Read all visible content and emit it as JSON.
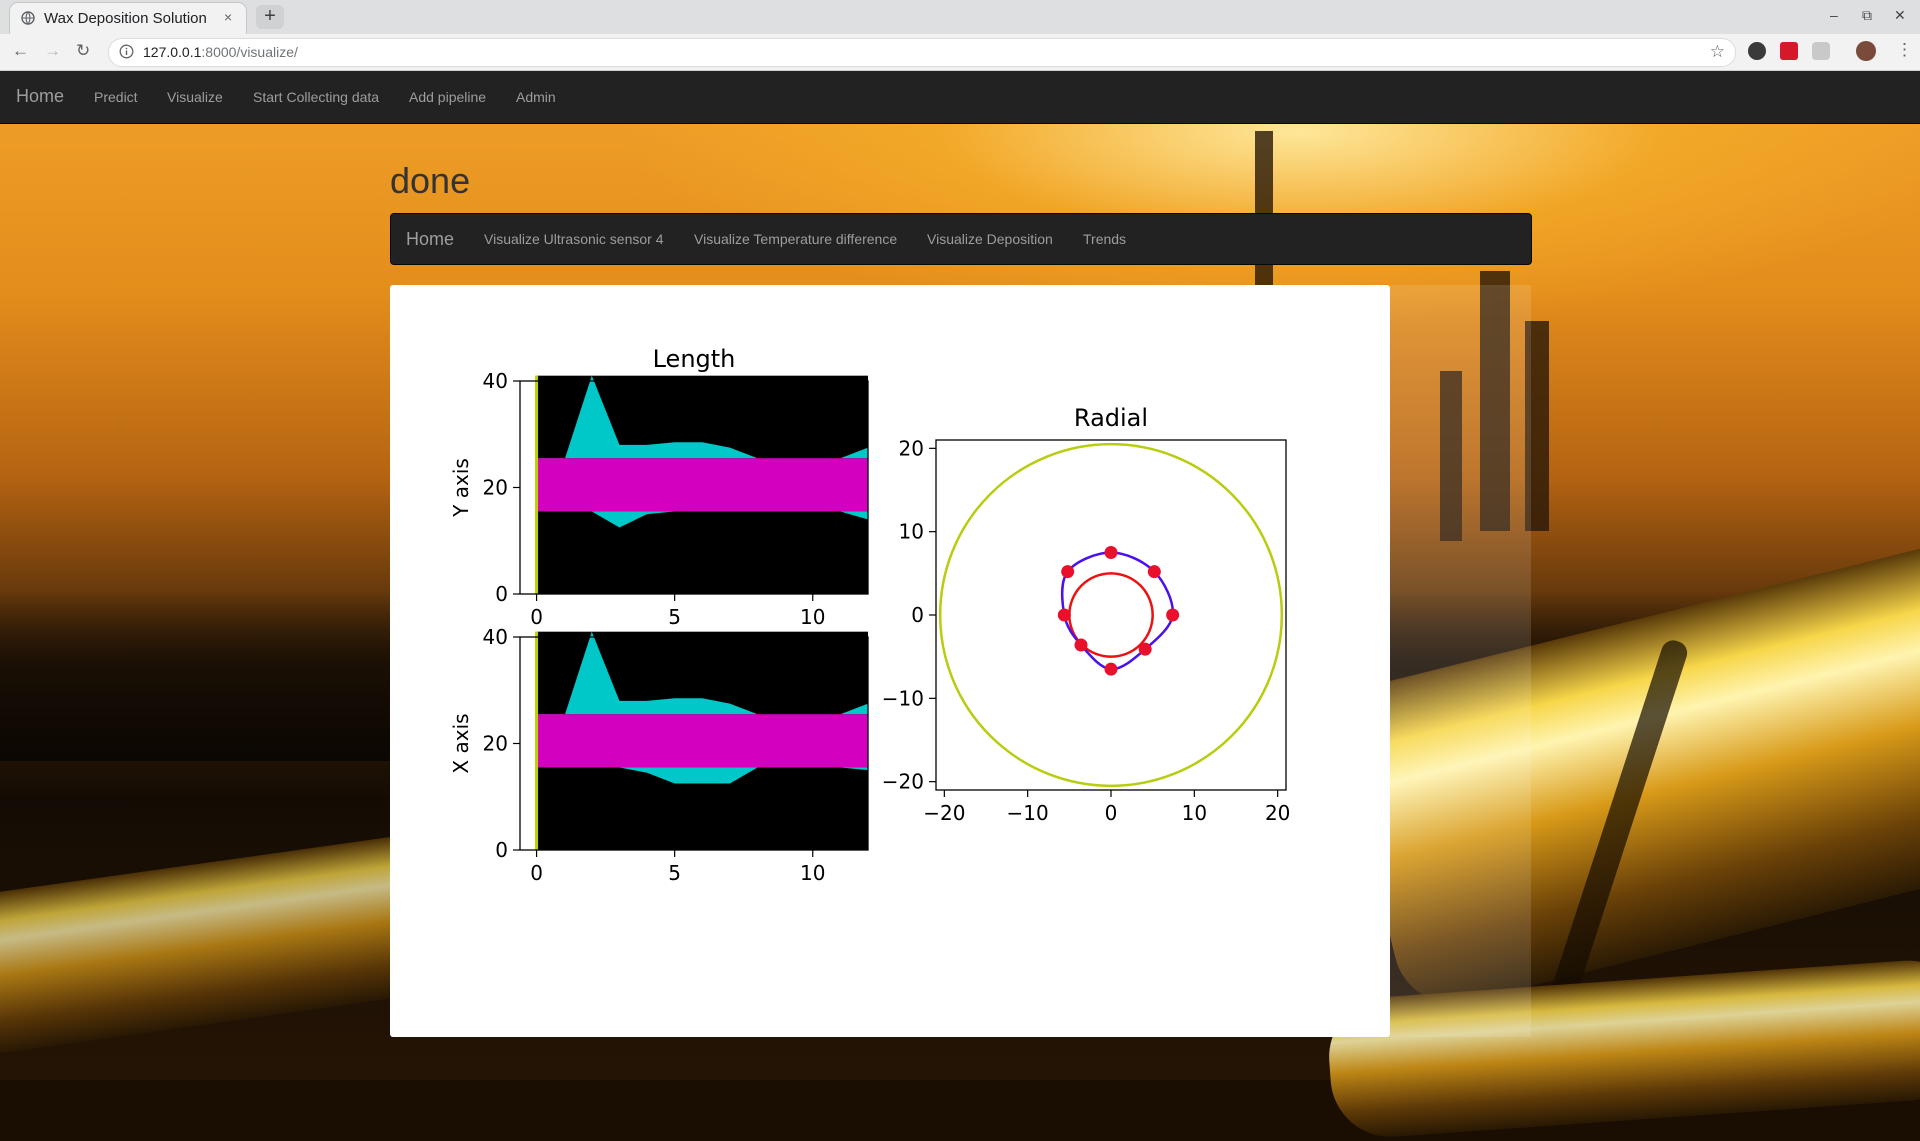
{
  "browser": {
    "tab_title": "Wax Deposition Solution",
    "tab_close": "×",
    "new_tab": "+",
    "url_host": "127.0.0.1",
    "url_path": ":8000/visualize/",
    "back": "←",
    "forward": "→",
    "reload": "↻",
    "bookmark": "☆",
    "minimize": "–",
    "restore": "⧉",
    "close": "✕",
    "menu": "⋮"
  },
  "navbar": {
    "brand": "Home",
    "links": [
      "Predict",
      "Visualize",
      "Start Collecting data",
      "Add pipeline",
      "Admin"
    ]
  },
  "page": {
    "heading": "done"
  },
  "subnav": {
    "brand": "Home",
    "links": [
      "Visualize Ultrasonic sensor 4",
      "Visualize Temperature difference",
      "Visualize Deposition",
      "Trends"
    ]
  },
  "chart_data": [
    {
      "type": "area",
      "title": "Length",
      "xlabel": "",
      "ylabel": "Y axis",
      "xlim": [
        -0.6,
        12
      ],
      "ylim": [
        0,
        40
      ],
      "xticks": [
        0,
        5,
        10
      ],
      "yticks": [
        0,
        20,
        40
      ],
      "grid": false,
      "background": "#000000",
      "colors": {
        "upper_lower": "#00c8c8",
        "band": "#d400c0",
        "axis_line": "#bcd000"
      },
      "x": [
        0,
        1,
        2,
        3,
        4,
        5,
        6,
        7,
        8,
        9,
        10,
        11,
        12
      ],
      "series": [
        {
          "values_upper": [
            25,
            25,
            41,
            28,
            28,
            28.5,
            28.5,
            27.5,
            25.5,
            25.5,
            25.5,
            25.5,
            27.5
          ]
        },
        {
          "values_lower": [
            15.5,
            15.5,
            15.5,
            12.5,
            15,
            15.5,
            15.5,
            15.5,
            15.5,
            15.5,
            15.5,
            15.5,
            14
          ]
        },
        {
          "band": [
            15.5,
            25.5
          ]
        }
      ]
    },
    {
      "type": "area",
      "title": "",
      "xlabel": "",
      "ylabel": "X axis",
      "xlim": [
        -0.6,
        12
      ],
      "ylim": [
        0,
        40
      ],
      "xticks": [
        0,
        5,
        10
      ],
      "yticks": [
        0,
        20,
        40
      ],
      "grid": false,
      "background": "#000000",
      "colors": {
        "upper_lower": "#00c8c8",
        "band": "#d400c0",
        "axis_line": "#bcd000"
      },
      "x": [
        0,
        1,
        2,
        3,
        4,
        5,
        6,
        7,
        8,
        9,
        10,
        11,
        12
      ],
      "series": [
        {
          "values_upper": [
            25,
            25,
            41,
            28,
            28,
            28.5,
            28.5,
            27.5,
            25.5,
            25.5,
            25.5,
            25.5,
            27.5
          ]
        },
        {
          "values_lower": [
            15.5,
            15.5,
            15.5,
            15.5,
            14.5,
            12.5,
            12.5,
            12.5,
            15.5,
            15.5,
            15.5,
            15.5,
            15
          ]
        },
        {
          "band": [
            15.5,
            25.5
          ]
        }
      ]
    },
    {
      "type": "scatter",
      "title": "Radial",
      "xlabel": "",
      "ylabel": "",
      "xlim": [
        -21,
        21
      ],
      "ylim": [
        -21,
        21
      ],
      "xticks": [
        -20,
        -10,
        0,
        10,
        20
      ],
      "yticks": [
        -20,
        -10,
        0,
        10,
        20
      ],
      "xtick_labels": [
        "−20",
        "−10",
        "0",
        "10",
        "20"
      ],
      "ytick_labels": [
        "−20",
        "−10",
        "0",
        "10",
        "20"
      ],
      "grid": false,
      "circles": [
        {
          "name": "outer",
          "radius": 20.5,
          "color": "#b8cc10"
        },
        {
          "name": "inner",
          "radius": 5,
          "color": "#ee1111"
        }
      ],
      "points": [
        [
          0,
          7.5
        ],
        [
          5.2,
          5.2
        ],
        [
          7.4,
          0
        ],
        [
          4.1,
          -4.1
        ],
        [
          0,
          -6.5
        ],
        [
          -3.6,
          -3.6
        ],
        [
          -5.6,
          0
        ],
        [
          -5.2,
          5.2
        ]
      ],
      "point_color": "#e8102a",
      "curve_color": "#4a10ee"
    }
  ]
}
